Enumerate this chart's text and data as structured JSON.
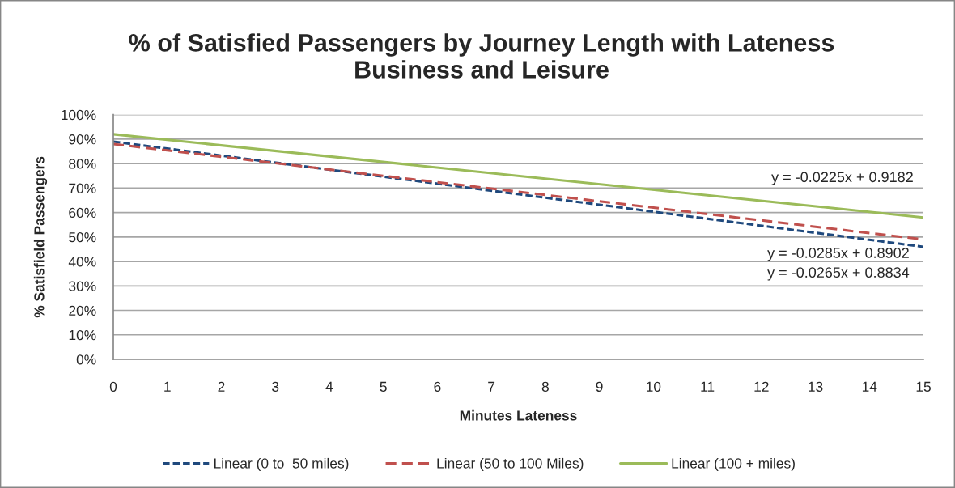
{
  "chart_data": {
    "type": "line",
    "title": "% of Satisfied Passengers by Journey Length with Lateness\nBusiness and Leisure",
    "xlabel": "Minutes Lateness",
    "ylabel": "% Satisfield Passengers",
    "x": [
      0,
      15
    ],
    "series": [
      {
        "name": "Linear (0 to  50 miles)",
        "color": "#1f497d",
        "line_style": "dotted",
        "values": [
          89,
          46
        ]
      },
      {
        "name": "Linear (50 to 100 Miles)",
        "color": "#c0504d",
        "line_style": "dashed",
        "values": [
          88,
          49
        ]
      },
      {
        "name": "Linear (100 + miles)",
        "color": "#9bbb59",
        "line_style": "solid",
        "values": [
          92,
          58
        ]
      }
    ],
    "xlim": [
      0,
      15
    ],
    "xticks": [
      0,
      1,
      2,
      3,
      4,
      5,
      6,
      7,
      8,
      9,
      10,
      11,
      12,
      13,
      14,
      15
    ],
    "ylim": [
      0,
      100
    ],
    "yticks": [
      {
        "value": 0,
        "label": "0%"
      },
      {
        "value": 10,
        "label": "10%"
      },
      {
        "value": 20,
        "label": "20%"
      },
      {
        "value": 30,
        "label": "30%"
      },
      {
        "value": 40,
        "label": "40%"
      },
      {
        "value": 50,
        "label": "50%"
      },
      {
        "value": 60,
        "label": "60%"
      },
      {
        "value": 70,
        "label": "70%"
      },
      {
        "value": 80,
        "label": "80%"
      },
      {
        "value": 90,
        "label": "90%"
      },
      {
        "value": 100,
        "label": "100%"
      }
    ],
    "annotations": [
      "y = -0.0225x + 0.9182",
      "y = -0.0285x + 0.8902",
      "y = -0.0265x + 0.8834"
    ],
    "grid": "y",
    "legend": "bottom"
  }
}
